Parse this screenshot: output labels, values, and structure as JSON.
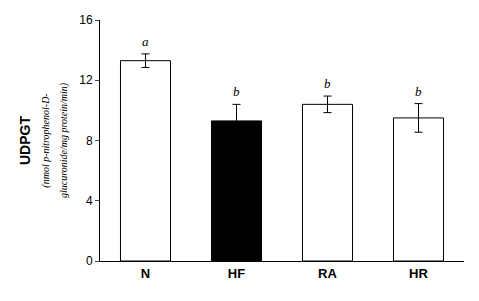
{
  "chart_data": {
    "type": "bar",
    "categories": [
      "N",
      "HF",
      "RA",
      "HR"
    ],
    "values": [
      13.3,
      9.3,
      10.4,
      9.5
    ],
    "errors": [
      0.45,
      1.1,
      0.55,
      0.95
    ],
    "annotations": [
      "a",
      "b",
      "b",
      "b"
    ],
    "colors": [
      "white",
      "black",
      "white",
      "white"
    ],
    "ylabel": "UDPGT",
    "ylabel_subtitle": "(nmol p-nitrophenol-D-\nglucuronide/mg protein/min)",
    "ylim": [
      0,
      16
    ],
    "yticks": [
      0,
      4,
      8,
      12,
      16
    ],
    "grid": false
  }
}
